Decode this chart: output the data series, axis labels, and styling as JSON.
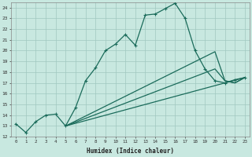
{
  "xlabel": "Humidex (Indice chaleur)",
  "xlim": [
    -0.5,
    23.5
  ],
  "ylim": [
    12,
    24.5
  ],
  "xticks": [
    0,
    1,
    2,
    3,
    4,
    5,
    6,
    7,
    8,
    9,
    10,
    11,
    12,
    13,
    14,
    15,
    16,
    17,
    18,
    19,
    20,
    21,
    22,
    23
  ],
  "yticks": [
    12,
    13,
    14,
    15,
    16,
    17,
    18,
    19,
    20,
    21,
    22,
    23,
    24
  ],
  "bg_color": "#c8e8e0",
  "grid_color": "#a0c8c0",
  "line_color": "#1a6b5a",
  "line1_x": [
    0,
    1,
    2,
    3,
    4,
    5,
    6,
    7,
    8,
    9,
    10,
    11,
    12,
    13,
    14,
    15,
    16,
    17,
    18,
    19,
    20,
    21,
    22,
    23
  ],
  "line1_y": [
    13.2,
    12.4,
    13.4,
    14.0,
    14.1,
    13.0,
    14.7,
    17.2,
    18.4,
    20.0,
    20.6,
    21.5,
    20.5,
    23.3,
    23.4,
    23.9,
    24.4,
    23.0,
    20.0,
    18.3,
    17.2,
    17.0,
    17.3,
    17.5
  ],
  "line2_x": [
    5,
    23
  ],
  "line2_y": [
    13.0,
    17.5
  ],
  "line3_x": [
    5,
    20,
    21,
    22,
    23
  ],
  "line3_y": [
    13.0,
    18.3,
    17.2,
    17.0,
    17.5
  ],
  "line4_x": [
    5,
    20,
    21,
    22,
    23
  ],
  "line4_y": [
    13.0,
    19.9,
    17.2,
    17.0,
    17.5
  ]
}
